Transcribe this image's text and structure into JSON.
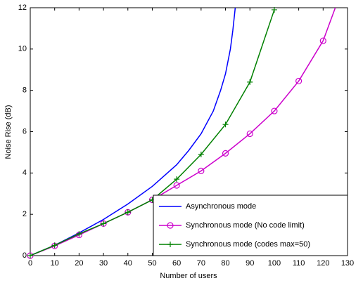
{
  "chart_data": {
    "type": "line",
    "xlabel": "Number of users",
    "ylabel": "Noise Rise (dB)",
    "xlim": [
      0,
      130
    ],
    "ylim": [
      0,
      12
    ],
    "xticks": [
      0,
      10,
      20,
      30,
      40,
      50,
      60,
      70,
      80,
      90,
      100,
      110,
      120,
      130
    ],
    "yticks": [
      0,
      2,
      4,
      6,
      8,
      10,
      12
    ],
    "legend": "lower-right",
    "series": [
      {
        "name": "Asynchronous mode",
        "color": "#0000ff",
        "marker": "none",
        "x": [
          0,
          10,
          20,
          30,
          40,
          50,
          60,
          65,
          70,
          75,
          78,
          80,
          82,
          83,
          84
        ],
        "values": [
          0,
          0.5,
          1.1,
          1.75,
          2.5,
          3.35,
          4.4,
          5.1,
          5.9,
          7.0,
          8.0,
          8.8,
          10.0,
          10.9,
          12
        ]
      },
      {
        "name": "Synchronous mode (No code limit)",
        "color": "#cc00cc",
        "marker": "circle",
        "x": [
          0,
          10,
          20,
          30,
          40,
          50,
          60,
          70,
          80,
          90,
          100,
          110,
          120,
          125
        ],
        "values": [
          0,
          0.47,
          1.0,
          1.55,
          2.1,
          2.7,
          3.4,
          4.1,
          4.95,
          5.9,
          7.0,
          8.45,
          10.4,
          12
        ]
      },
      {
        "name": "Synchronous mode (codes max=50)",
        "color": "#008000",
        "marker": "plus",
        "x": [
          0,
          10,
          20,
          30,
          40,
          50,
          60,
          70,
          80,
          90,
          100
        ],
        "values": [
          0,
          0.5,
          1.05,
          1.55,
          2.1,
          2.7,
          3.7,
          4.9,
          6.35,
          8.4,
          11.9
        ]
      }
    ]
  }
}
